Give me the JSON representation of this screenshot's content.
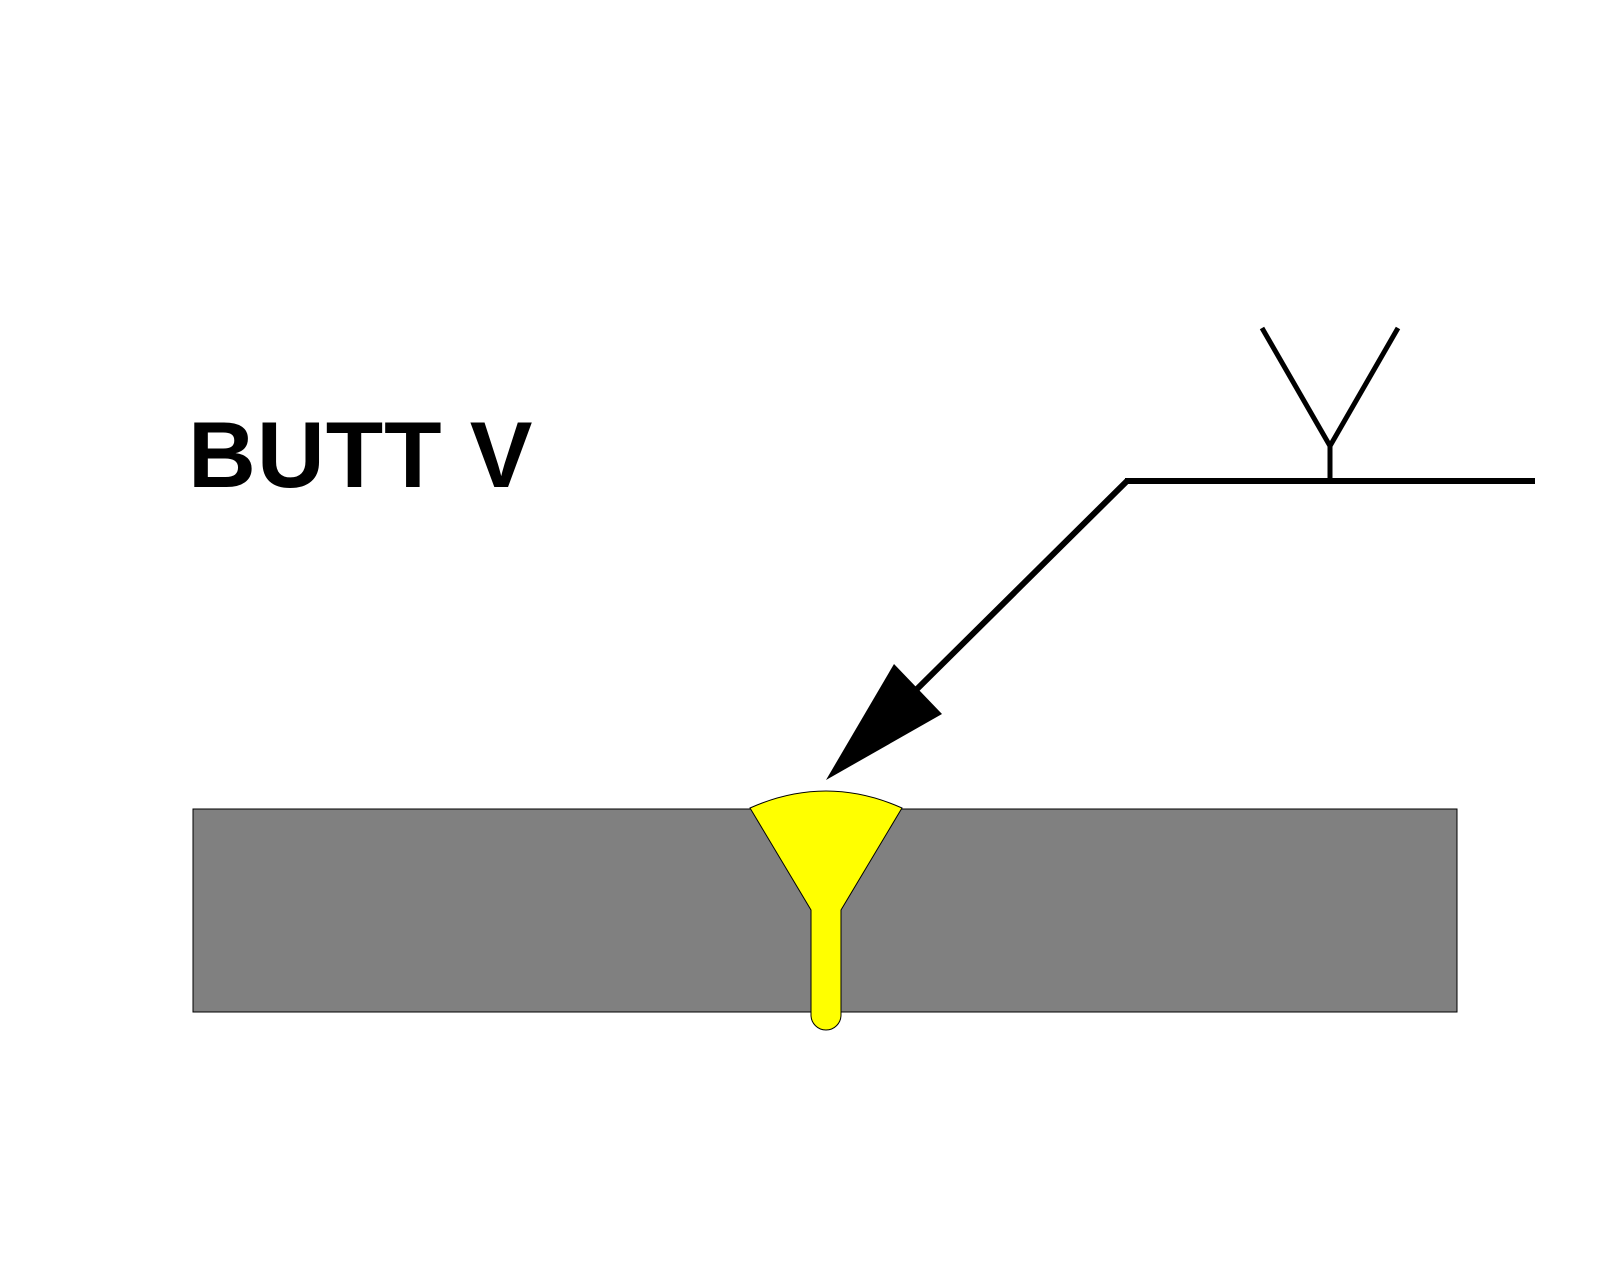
{
  "diagram": {
    "title": "BUTT V",
    "colors": {
      "background": "#ffffff",
      "plate": "#808080",
      "weld": "#ffff00",
      "line": "#000000"
    },
    "elements": {
      "symbol": "v-groove-weld-symbol",
      "arrow": "arrow-pointing-to-weld",
      "plate": "steel-plate",
      "weld": "v-butt-weld-bead"
    }
  }
}
